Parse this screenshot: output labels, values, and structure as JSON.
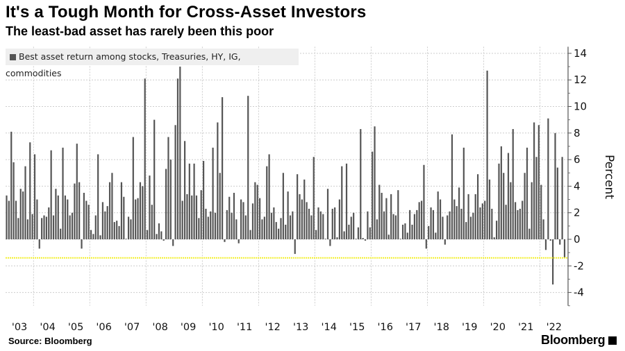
{
  "title": "It's a Tough Month for Cross-Asset Investors",
  "subtitle": "The least-bad asset has rarely been this poor",
  "source": "Source: Bloomberg",
  "logo": "Bloomberg",
  "colors": {
    "bar": "#555555",
    "reference_line": "#f2ef2a",
    "grid": "#cccccc"
  },
  "chart_data": {
    "type": "bar",
    "title": "It's a Tough Month for Cross-Asset Investors",
    "subtitle": "The least-bad asset has rarely been this poor",
    "legend": [
      "Best asset return among stocks, Treasuries, HY, IG, commodities"
    ],
    "legend_placement": "top-left",
    "xlabel": "",
    "ylabel": "Percent",
    "ylim": [
      -5,
      14.5
    ],
    "yticks": [
      14,
      12,
      10,
      8,
      6,
      4,
      2,
      0,
      -2,
      -4
    ],
    "xtick_labels": [
      "'03",
      "'04",
      "'05",
      "'06",
      "'07",
      "'08",
      "'09",
      "'10",
      "'11",
      "'12",
      "'13",
      "'14",
      "'15",
      "'16",
      "'17",
      "'18",
      "'19",
      "'20",
      "'21",
      "'22"
    ],
    "frequency": "monthly",
    "reference_line": -1.4,
    "grid": true,
    "values": [
      3.3,
      2.9,
      8.1,
      5.8,
      2.9,
      1.6,
      3.8,
      3.6,
      5.5,
      1.5,
      7.3,
      1.9,
      6.4,
      3.0,
      -0.7,
      1.6,
      1.8,
      1.7,
      2.4,
      6.7,
      1.8,
      3.8,
      3.3,
      0.8,
      6.9,
      3.3,
      3.0,
      1.8,
      2.0,
      4.2,
      7.2,
      4.3,
      -0.7,
      3.5,
      2.9,
      2.6,
      0.7,
      0.4,
      1.8,
      6.4,
      0.3,
      2.8,
      2.1,
      2.5,
      4.3,
      5.0,
      1.3,
      1.4,
      1.0,
      4.3,
      3.2,
      0,
      1.7,
      1.5,
      7.7,
      3.0,
      3.1,
      4.3,
      4.0,
      12.1,
      0.7,
      4.8,
      2.6,
      9.0,
      0.4,
      1.2,
      0.6,
      -0.1,
      5.3,
      7.7,
      6.0,
      -0.5,
      8.6,
      12.1,
      13.0,
      2.9,
      7.4,
      3.4,
      5.7,
      3.3,
      5.7,
      3.3,
      1.6,
      3.7,
      5.9,
      2.3,
      1.7,
      2.1,
      6.9,
      2.0,
      8.8,
      5.0,
      10.7,
      -0.2,
      2.2,
      3.2,
      2.0,
      3.5,
      1.5,
      -0.3,
      3.0,
      2.8,
      1.8,
      10.8,
      0.7,
      2.7,
      4.3,
      4.1,
      3.1,
      1.5,
      1.7,
      5.5,
      6.4,
      2.0,
      2.4,
      1.3,
      0.8,
      1.6,
      5.0,
      1.1,
      3.6,
      1.8,
      2.1,
      -1.1,
      4.9,
      3.4,
      3.0,
      4.5,
      2.8,
      2.3,
      1.8,
      6.2,
      0.7,
      2.4,
      2.1,
      1.9,
      0,
      3.8,
      -0.5,
      2.3,
      2.4,
      0.15,
      3.0,
      5.5,
      0.6,
      5.7,
      1.1,
      1.7,
      2.0,
      0,
      0.9,
      8.3,
      0.1,
      -0.1,
      2.1,
      0.9,
      6.6,
      8.5,
      1.5,
      4.1,
      3.5,
      2.1,
      3.1,
      0.35,
      3.4,
      1.9,
      1.8,
      3.7,
      0,
      1.1,
      1.2,
      0.5,
      2.2,
      1.1,
      1.9,
      2.2,
      2.8,
      2.9,
      5.6,
      -0.7,
      1.0,
      2.4,
      2.2,
      0.5,
      3.6,
      3.0,
      1.7,
      -0.4,
      1.8,
      2.1,
      7.9,
      3.0,
      2.5,
      3.9,
      2.3,
      6.9,
      1.3,
      3.4,
      1.7,
      2.0,
      3.4,
      4.9,
      2.4,
      2.7,
      2.9,
      12.7,
      4.5,
      2.3,
      0.15,
      1.4,
      5.7,
      7.0,
      5.0,
      2.6,
      6.5,
      4.3,
      8.3,
      2.8,
      2.2,
      2.3,
      2.9,
      5.0,
      6.9,
      0.8,
      4.3,
      8.8,
      6.2,
      8.6,
      4.1,
      1.5,
      -0.8,
      9.1,
      -0.1,
      -3.4,
      8.0,
      5.4,
      -0.4,
      6.2,
      -1.4
    ]
  }
}
